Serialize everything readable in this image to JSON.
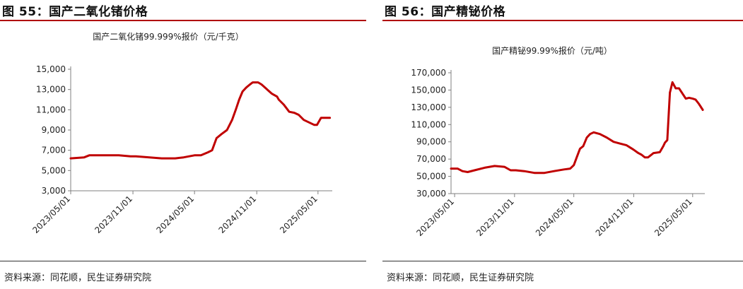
{
  "figures": [
    {
      "caption": "图 55：国产二氧化锗价格",
      "source": "资料来源：同花顺，民生证券研究院",
      "chart_data": {
        "type": "line",
        "title": "国产二氧化锗99.999%报价（元/千克）",
        "xlabel": "",
        "ylabel": "",
        "ylim": [
          3000,
          15000
        ],
        "yticks": [
          3000,
          5000,
          7000,
          9000,
          11000,
          13000,
          15000
        ],
        "ytick_labels": [
          "3,000",
          "5,000",
          "7,000",
          "9,000",
          "11,000",
          "13,000",
          "15,000"
        ],
        "xlim": [
          "2023-05-01",
          "2025-06-08"
        ],
        "xticks": [
          "2023-05-01",
          "2023-11-01",
          "2024-05-01",
          "2024-11-01",
          "2025-05-01"
        ],
        "xtick_labels": [
          "2023/05/01",
          "2023/11/01",
          "2024/05/01",
          "2024/11/01",
          "2025/05/01"
        ],
        "grid": false,
        "legend": "none",
        "series_color": "#c00000",
        "series": [
          {
            "x": [
              "2023-05-01",
              "2023-06-10",
              "2023-06-25",
              "2023-09-20",
              "2023-10-25",
              "2023-11-10",
              "2024-01-25",
              "2024-03-05",
              "2024-03-30",
              "2024-05-01",
              "2024-05-20",
              "2024-06-10",
              "2024-06-22",
              "2024-07-05",
              "2024-07-20",
              "2024-08-05",
              "2024-08-20",
              "2024-08-31",
              "2024-09-10",
              "2024-09-20",
              "2024-10-01",
              "2024-10-12",
              "2024-10-20",
              "2024-11-05",
              "2024-11-15",
              "2024-11-25",
              "2024-12-05",
              "2024-12-15",
              "2024-12-31",
              "2025-01-05",
              "2025-01-20",
              "2025-02-05",
              "2025-02-20",
              "2025-03-05",
              "2025-03-20",
              "2025-04-20",
              "2025-04-28",
              "2025-05-10",
              "2025-06-05"
            ],
            "y": [
              6200,
              6300,
              6500,
              6500,
              6400,
              6400,
              6200,
              6200,
              6300,
              6500,
              6500,
              6800,
              7000,
              8200,
              8600,
              9000,
              10000,
              11000,
              12000,
              12800,
              13200,
              13500,
              13700,
              13700,
              13500,
              13200,
              12900,
              12600,
              12300,
              12000,
              11500,
              10800,
              10700,
              10500,
              10000,
              9500,
              9500,
              10200,
              10200
            ]
          }
        ]
      }
    },
    {
      "caption": "图 56：国产精铋价格",
      "source": "资料来源：同花顺，民生证券研究院",
      "chart_data": {
        "type": "line",
        "title": "国产精铋99.99%报价（元/吨）",
        "xlabel": "",
        "ylabel": "",
        "ylim": [
          30000,
          170000
        ],
        "yticks": [
          30000,
          50000,
          70000,
          90000,
          110000,
          130000,
          150000,
          170000
        ],
        "ytick_labels": [
          "30,000",
          "50,000",
          "70,000",
          "90,000",
          "110,000",
          "130,000",
          "150,000",
          "170,000"
        ],
        "xlim": [
          "2023-04-20",
          "2025-06-03"
        ],
        "xticks": [
          "2023-05-01",
          "2023-11-01",
          "2024-05-01",
          "2024-11-01",
          "2025-05-01"
        ],
        "xtick_labels": [
          "2023/05/01",
          "2023/11/01",
          "2024/05/01",
          "2024/11/01",
          "2025/05/01"
        ],
        "grid": false,
        "legend": "none",
        "series_color": "#c00000",
        "series": [
          {
            "x": [
              "2023-04-20",
              "2023-05-10",
              "2023-05-25",
              "2023-06-10",
              "2023-07-01",
              "2023-08-01",
              "2023-09-01",
              "2023-10-01",
              "2023-10-20",
              "2023-11-05",
              "2023-12-01",
              "2024-01-01",
              "2024-02-01",
              "2024-03-01",
              "2024-04-01",
              "2024-04-20",
              "2024-05-01",
              "2024-05-10",
              "2024-05-20",
              "2024-05-30",
              "2024-06-10",
              "2024-06-20",
              "2024-07-01",
              "2024-07-20",
              "2024-08-10",
              "2024-08-31",
              "2024-09-10",
              "2024-09-20",
              "2024-10-10",
              "2024-10-31",
              "2024-11-15",
              "2024-11-25",
              "2024-12-05",
              "2024-12-15",
              "2025-01-01",
              "2025-01-20",
              "2025-01-31",
              "2025-02-05",
              "2025-02-12",
              "2025-02-20",
              "2025-02-28",
              "2025-03-10",
              "2025-03-20",
              "2025-04-10",
              "2025-04-20",
              "2025-05-01",
              "2025-05-10",
              "2025-05-20",
              "2025-06-01"
            ],
            "y": [
              59000,
              59000,
              56000,
              55000,
              57000,
              60000,
              62000,
              61000,
              57000,
              57000,
              56000,
              54000,
              54000,
              56000,
              58000,
              59000,
              63000,
              72000,
              82000,
              85000,
              95000,
              99000,
              101000,
              99000,
              95000,
              90000,
              89000,
              88000,
              86000,
              81000,
              77000,
              75000,
              72000,
              72000,
              77000,
              78000,
              85000,
              89000,
              92000,
              147000,
              159000,
              152000,
              152000,
              140000,
              141000,
              140000,
              139000,
              134000,
              127000
            ]
          }
        ]
      }
    }
  ]
}
